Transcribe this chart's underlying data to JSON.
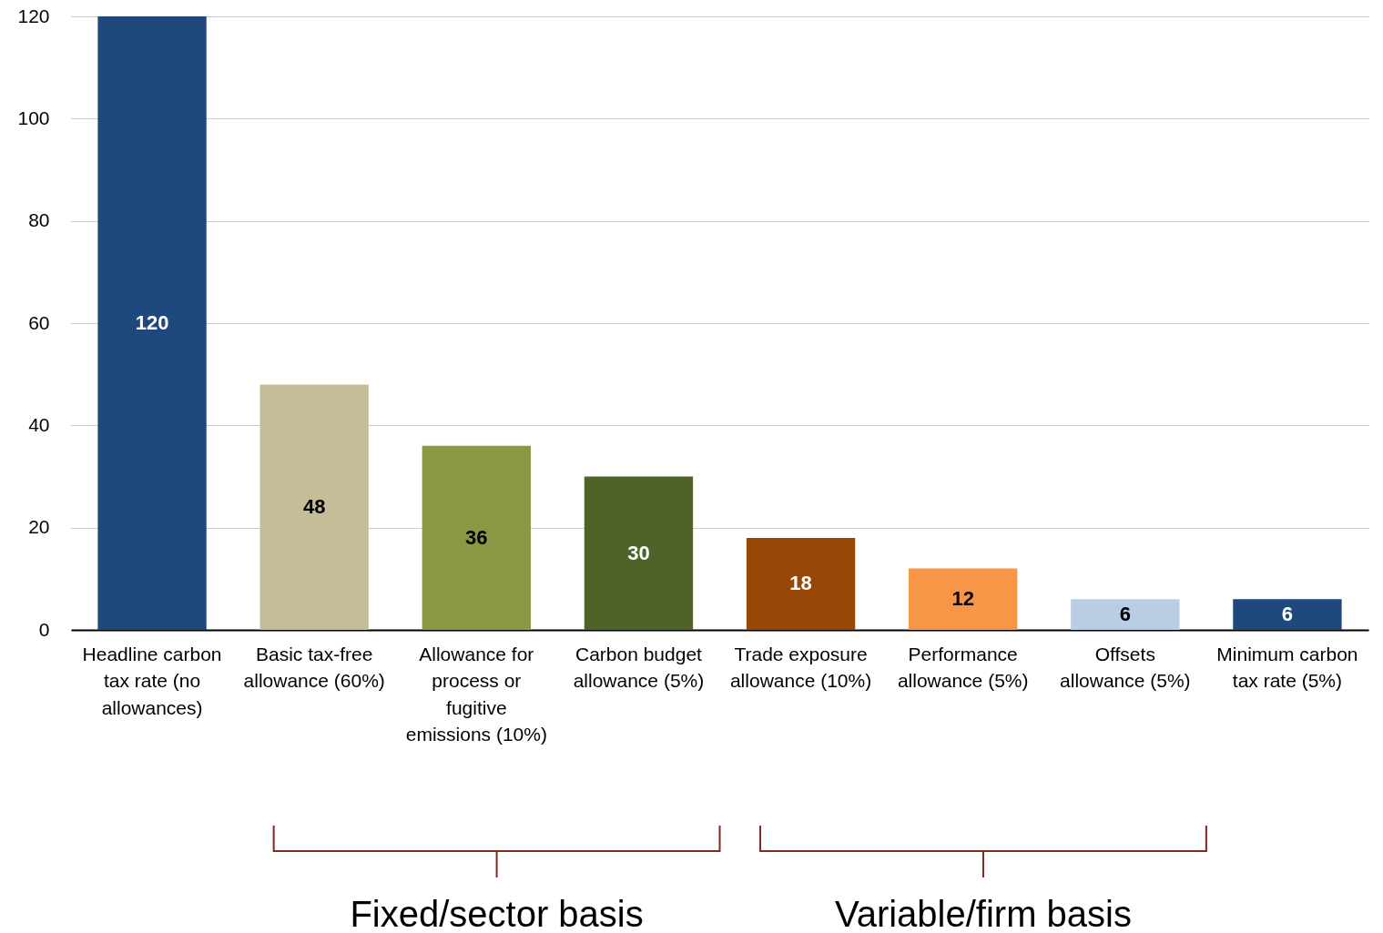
{
  "chart_data": {
    "type": "bar",
    "categories": [
      "Headline carbon tax rate (no allowances)",
      "Basic tax-free allowance (60%)",
      "Allowance for process or fugitive emissions (10%)",
      "Carbon budget allowance (5%)",
      "Trade exposure allowance (10%)",
      "Performance allowance (5%)",
      "Offsets allowance (5%)",
      "Minimum carbon tax rate (5%)"
    ],
    "values": [
      120,
      48,
      36,
      30,
      18,
      12,
      6,
      6
    ],
    "colors": [
      "#1f497d",
      "#c4bd97",
      "#8a9a44",
      "#4f6228",
      "#974806",
      "#f79646",
      "#b9cde5",
      "#1f497d"
    ],
    "ylim": [
      0,
      120
    ],
    "yticks": [
      0,
      20,
      40,
      60,
      80,
      100,
      120
    ],
    "grid": "y",
    "data_labels": true,
    "annotations": [
      "Fixed/sector basis",
      "Variable/firm basis"
    ]
  }
}
